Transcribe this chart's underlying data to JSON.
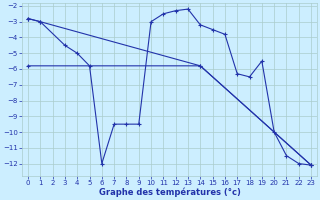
{
  "title": "Graphe des températures (°c)",
  "bg_color": "#cceeff",
  "grid_color": "#aacccc",
  "line_color": "#2233aa",
  "ylim": [
    -12.8,
    -1.8
  ],
  "xlim": [
    -0.5,
    23.5
  ],
  "yticks": [
    -2,
    -3,
    -4,
    -5,
    -6,
    -7,
    -8,
    -9,
    -10,
    -11,
    -12
  ],
  "xticks": [
    0,
    1,
    2,
    3,
    4,
    5,
    6,
    7,
    8,
    9,
    10,
    11,
    12,
    13,
    14,
    15,
    16,
    17,
    18,
    19,
    20,
    21,
    22,
    23
  ],
  "series1_x": [
    0,
    1,
    3,
    4,
    5,
    6,
    7,
    8,
    9,
    10,
    11,
    12,
    13,
    14,
    15,
    16,
    17,
    18,
    19,
    20,
    21,
    22,
    23
  ],
  "series1_y": [
    -2.8,
    -3.0,
    -4.5,
    -5.0,
    -5.8,
    -12.0,
    -9.5,
    -9.5,
    -9.5,
    -3.0,
    -2.5,
    -2.3,
    -2.2,
    -3.2,
    -3.5,
    -3.8,
    -6.3,
    -6.5,
    -5.5,
    -10.0,
    -11.5,
    -12.0,
    -12.1
  ],
  "series2_x": [
    0,
    1,
    14,
    23
  ],
  "series2_y": [
    -2.8,
    -3.0,
    -5.8,
    -12.1
  ],
  "series3_x": [
    0,
    14,
    23
  ],
  "series3_y": [
    -5.8,
    -5.8,
    -12.1
  ]
}
